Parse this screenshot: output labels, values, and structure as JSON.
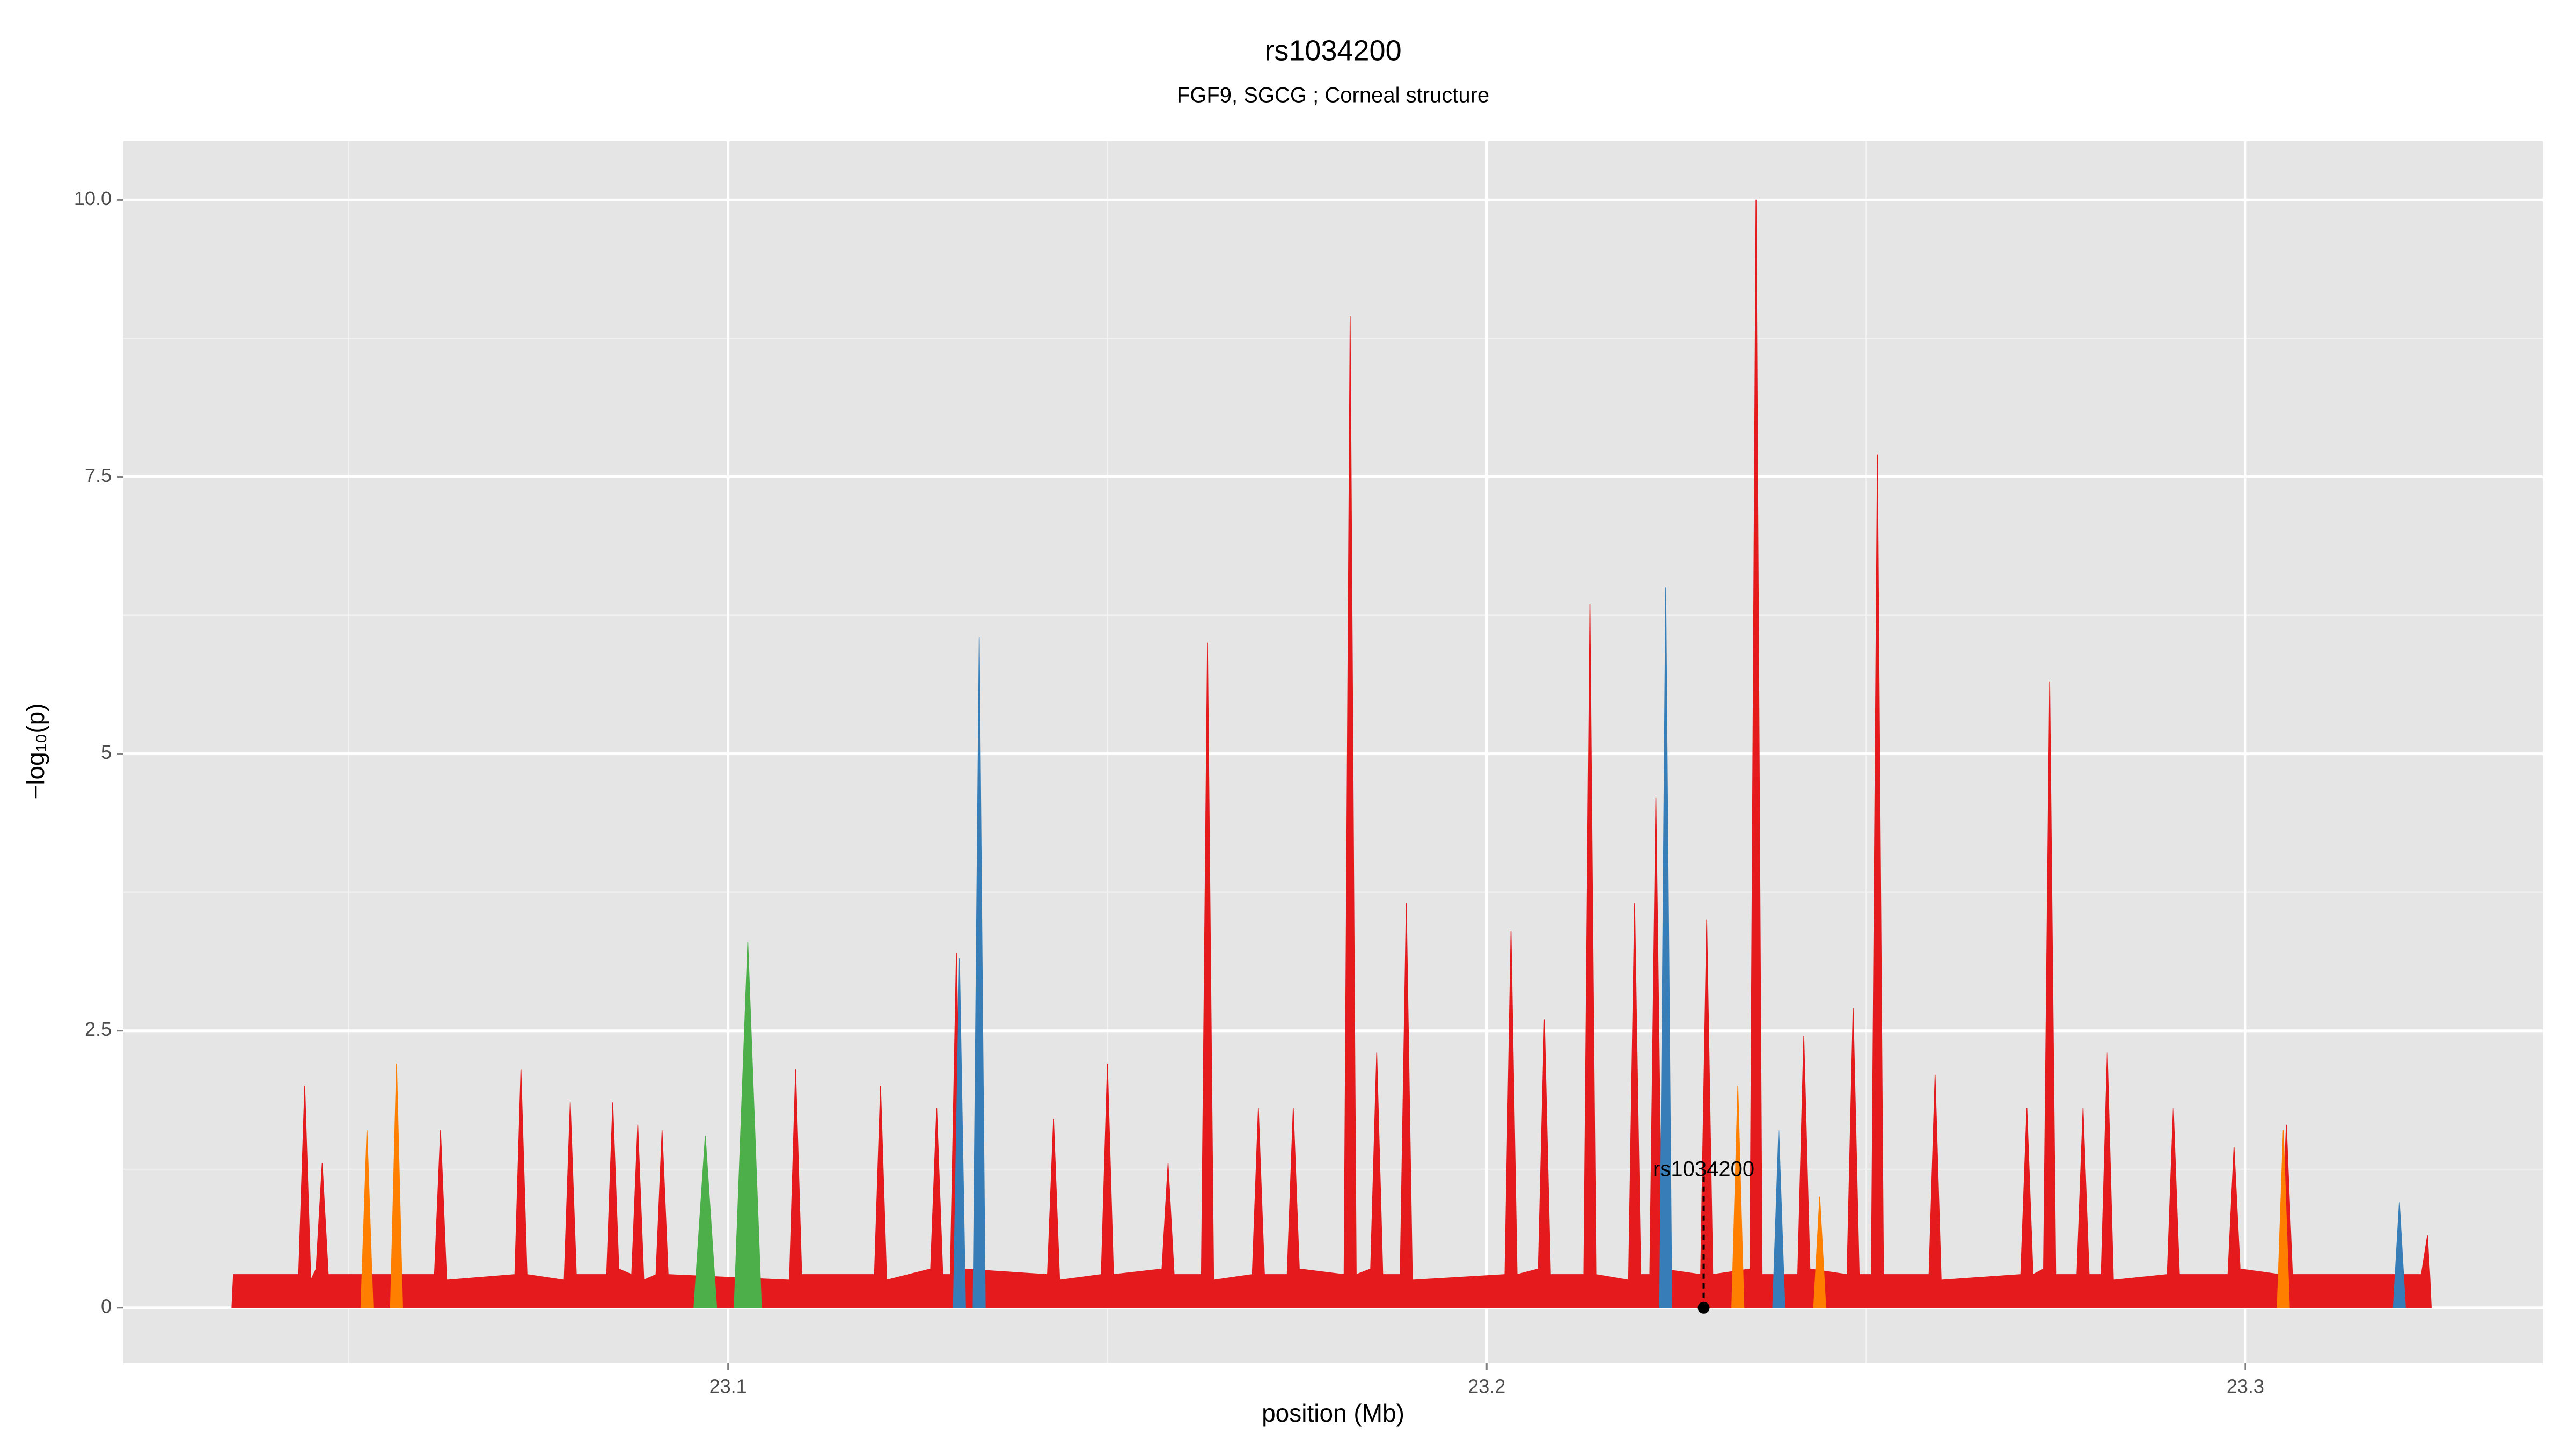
{
  "chart_data": {
    "type": "area",
    "title": "rs1034200",
    "subtitle": "FGF9, SGCG ; Corneal structure",
    "x_label": "position (Mb)",
    "y_label": "−log₁₀(p)",
    "xlim": [
      23.0203,
      23.3392
    ],
    "xticks": [
      23.1,
      23.2,
      23.3
    ],
    "ylim": [
      -0.5,
      10.53
    ],
    "yticks": [
      0,
      2.5,
      5,
      7.5,
      {
        "value": 10,
        "label": "10.0"
      }
    ],
    "grid": true,
    "series": [
      {
        "color": "#e41a1c",
        "x": [
          23.0346,
          23.0348,
          23.0434,
          23.0442,
          23.045,
          23.0457,
          23.0465,
          23.0473,
          23.0613,
          23.0621,
          23.0629,
          23.0719,
          23.0727,
          23.0735,
          23.0784,
          23.0792,
          23.08,
          23.084,
          23.0848,
          23.0856,
          23.0873,
          23.0881,
          23.0889,
          23.0905,
          23.0913,
          23.0921,
          23.1081,
          23.1089,
          23.1097,
          23.1193,
          23.1201,
          23.1209,
          23.1267,
          23.1275,
          23.1283,
          23.1293,
          23.1301,
          23.1309,
          23.1421,
          23.1429,
          23.1437,
          23.1492,
          23.15,
          23.1508,
          23.1572,
          23.158,
          23.1588,
          23.1624,
          23.1632,
          23.164,
          23.1691,
          23.1699,
          23.1707,
          23.1737,
          23.1745,
          23.1753,
          23.1812,
          23.182,
          23.1828,
          23.1847,
          23.1855,
          23.1863,
          23.1886,
          23.1894,
          23.1902,
          23.2024,
          23.2032,
          23.204,
          23.2068,
          23.2076,
          23.2084,
          23.2128,
          23.2136,
          23.2144,
          23.2187,
          23.2195,
          23.2203,
          23.2215,
          23.2223,
          23.2231,
          23.2282,
          23.229,
          23.2298,
          23.2347,
          23.2355,
          23.2363,
          23.241,
          23.2418,
          23.2426,
          23.2475,
          23.2483,
          23.2491,
          23.2507,
          23.2515,
          23.2523,
          23.2583,
          23.2591,
          23.2599,
          23.2704,
          23.2712,
          23.272,
          23.2734,
          23.2742,
          23.275,
          23.2778,
          23.2786,
          23.2794,
          23.281,
          23.2818,
          23.2826,
          23.2897,
          23.2905,
          23.2913,
          23.2977,
          23.2985,
          23.2993,
          23.3046,
          23.3054,
          23.3062,
          23.3232,
          23.324,
          23.3243,
          23.3245
        ],
        "values": [
          0,
          0.3,
          0.3,
          2.0,
          0.25,
          0.35,
          1.3,
          0.3,
          0.3,
          1.6,
          0.25,
          0.3,
          2.15,
          0.3,
          0.25,
          1.85,
          0.3,
          0.3,
          1.85,
          0.35,
          0.3,
          1.65,
          0.25,
          0.3,
          1.6,
          0.3,
          0.25,
          2.15,
          0.3,
          0.3,
          2.0,
          0.25,
          0.35,
          1.8,
          0.3,
          0.3,
          3.2,
          0.35,
          0.3,
          1.7,
          0.25,
          0.3,
          2.2,
          0.3,
          0.35,
          1.3,
          0.3,
          0.3,
          6.0,
          0.25,
          0.3,
          1.8,
          0.3,
          0.3,
          1.8,
          0.35,
          0.3,
          8.95,
          0.3,
          0.35,
          2.3,
          0.3,
          0.3,
          3.65,
          0.25,
          0.3,
          3.4,
          0.3,
          0.35,
          2.6,
          0.3,
          0.3,
          6.35,
          0.3,
          0.25,
          3.65,
          0.3,
          0.3,
          4.6,
          0.35,
          0.3,
          3.5,
          0.3,
          0.35,
          10.0,
          0.3,
          0.3,
          2.45,
          0.35,
          0.3,
          2.7,
          0.3,
          0.3,
          7.7,
          0.3,
          0.3,
          2.1,
          0.25,
          0.3,
          1.8,
          0.3,
          0.35,
          5.65,
          0.3,
          0.3,
          1.8,
          0.3,
          0.3,
          2.3,
          0.25,
          0.3,
          1.8,
          0.3,
          0.3,
          1.45,
          0.35,
          0.3,
          1.65,
          0.3,
          0.3,
          0.65,
          0.3,
          0
        ]
      },
      {
        "color": "#ff7f00",
        "x": [
          23.0516,
          23.0524,
          23.0532,
          null,
          23.0555,
          23.0563,
          23.0571,
          null,
          23.2323,
          23.2331,
          23.2339,
          null,
          23.2431,
          23.2439,
          23.2447,
          null,
          23.3042,
          23.305,
          23.3058
        ],
        "values": [
          0,
          1.6,
          0,
          null,
          0,
          2.2,
          0,
          null,
          0,
          2.0,
          0,
          null,
          0,
          1.0,
          0,
          null,
          0,
          1.6,
          0
        ]
      },
      {
        "color": "#377eb8",
        "x": [
          23.1297,
          23.1305,
          23.1313,
          null,
          23.1323,
          23.1331,
          23.1339,
          null,
          23.2228,
          23.2236,
          23.2244,
          null,
          23.2377,
          23.2385,
          23.2393,
          null,
          23.3195,
          23.3203,
          23.3211
        ],
        "values": [
          0,
          3.15,
          0,
          null,
          0,
          6.05,
          0,
          null,
          0,
          6.5,
          0,
          null,
          0,
          1.6,
          0,
          null,
          0,
          0.95,
          0
        ]
      },
      {
        "color": "#4daf4a",
        "x": [
          23.0955,
          23.097,
          23.0985,
          null,
          23.1008,
          23.1026,
          23.1044
        ],
        "values": [
          0,
          1.55,
          0,
          null,
          0,
          3.3,
          0
        ]
      }
    ],
    "highlight": {
      "label": "rs1034200",
      "x": 23.2286,
      "y": 0
    }
  }
}
